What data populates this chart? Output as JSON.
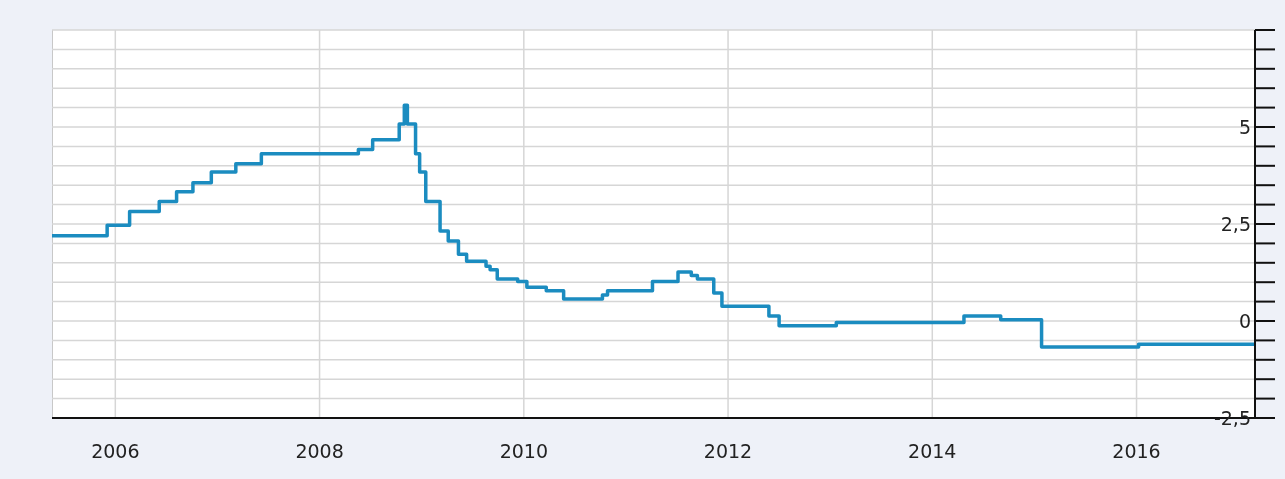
{
  "chart_data": {
    "type": "step",
    "x": [
      2005.38,
      2005.92,
      2006.14,
      2006.43,
      2006.6,
      2006.76,
      2006.94,
      2007.18,
      2007.43,
      2008.38,
      2008.52,
      2008.78,
      2008.83,
      2008.86,
      2008.94,
      2008.98,
      2009.04,
      2009.18,
      2009.26,
      2009.36,
      2009.44,
      2009.63,
      2009.67,
      2009.74,
      2009.94,
      2010.03,
      2010.22,
      2010.39,
      2010.77,
      2010.82,
      2011.26,
      2011.51,
      2011.64,
      2011.7,
      2011.86,
      2011.94,
      2012.4,
      2012.5,
      2013.06,
      2014.31,
      2014.67,
      2015.07,
      2016.02,
      2017.16
    ],
    "series": [
      {
        "color": "#1b8cc0",
        "values": [
          2.2,
          2.47,
          2.82,
          3.08,
          3.33,
          3.56,
          3.84,
          4.05,
          4.31,
          4.42,
          4.67,
          5.08,
          5.56,
          5.08,
          4.31,
          3.84,
          3.08,
          2.32,
          2.06,
          1.72,
          1.54,
          1.41,
          1.32,
          1.08,
          1.02,
          0.87,
          0.78,
          0.57,
          0.67,
          0.78,
          1.02,
          1.26,
          1.17,
          1.08,
          0.72,
          0.38,
          0.13,
          -0.12,
          -0.04,
          0.13,
          0.03,
          -0.67,
          -0.6,
          -0.6
        ]
      }
    ],
    "xlim": [
      2005.38,
      2017.16
    ],
    "xticks": [
      2006,
      2008,
      2010,
      2012,
      2014,
      2016
    ],
    "ylim": [
      -2.5,
      7.5
    ],
    "yticks": [
      {
        "value": -2.5,
        "label": "-2,5"
      },
      {
        "value": -2,
        "label": null
      },
      {
        "value": -1.5,
        "label": null
      },
      {
        "value": -1,
        "label": null
      },
      {
        "value": -0.5,
        "label": null
      },
      0,
      {
        "value": 0.5,
        "label": null
      },
      {
        "value": 1,
        "label": null
      },
      {
        "value": 1.5,
        "label": null
      },
      {
        "value": 2,
        "label": null
      },
      {
        "value": 2.5,
        "label": "2,5"
      },
      {
        "value": 3,
        "label": null
      },
      {
        "value": 3.5,
        "label": null
      },
      {
        "value": 4,
        "label": null
      },
      {
        "value": 4.5,
        "label": null
      },
      5,
      {
        "value": 5.5,
        "label": null
      },
      {
        "value": 6,
        "label": null
      },
      {
        "value": 6.5,
        "label": null
      },
      {
        "value": 7,
        "label": null
      },
      {
        "value": 7.5,
        "label": null
      }
    ],
    "grid": true,
    "legend": false,
    "marker": "none",
    "line_style": "solid"
  }
}
